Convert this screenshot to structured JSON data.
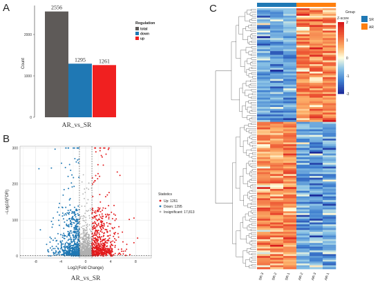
{
  "panels": {
    "a": "A",
    "b": "B",
    "c": "C"
  },
  "chart_data": [
    {
      "type": "bar",
      "categories": [
        "total",
        "down",
        "up"
      ],
      "values": [
        2556,
        1295,
        1261
      ],
      "value_labels": [
        "2556",
        "1295",
        "1261"
      ],
      "xlabel": "AR_vs_SR",
      "ylabel": "Count",
      "yticks": [
        "0",
        "1000",
        "2000"
      ],
      "ylim": [
        0,
        2700
      ],
      "legend_title": "Regulation",
      "legend": [
        {
          "name": "total",
          "color": "#5e5a58"
        },
        {
          "name": "down",
          "color": "#1f78b4"
        },
        {
          "name": "up",
          "color": "#f02020"
        }
      ],
      "legend_position": "right"
    },
    {
      "type": "scatter",
      "xlabel": "Log2(Fold Change)",
      "ylabel": "−Log10(FDR)",
      "caption": "AR_vs_SR",
      "xticks": [
        "-8",
        "-4",
        "0",
        "4",
        "8"
      ],
      "yticks": [
        "0",
        "100",
        "200",
        "300"
      ],
      "xlim": [
        -10.5,
        10.5
      ],
      "ylim": [
        -5,
        305
      ],
      "threshold_x": [
        -1,
        1
      ],
      "threshold_y": 1.3,
      "legend_title": "Statistics",
      "legend": [
        {
          "name": "Up: 1261",
          "color": "#e31a1c"
        },
        {
          "name": "Down: 1295",
          "color": "#1f78b4"
        },
        {
          "name": "Insignificant: 17,813",
          "color": "#b0b0b0"
        }
      ],
      "legend_position": "right",
      "counts": {
        "up": 1261,
        "down": 1295,
        "insignificant": 17813
      }
    },
    {
      "type": "heatmap",
      "columns": [
        "SR-3",
        "SR-2",
        "SR-1",
        "AR-2",
        "AR-3",
        "AR-1"
      ],
      "groups": [
        {
          "name": "SR",
          "color": "#1f78b4"
        },
        {
          "name": "AR",
          "color": "#ff7f0e"
        }
      ],
      "group_legend_title": "Group",
      "colorbar_title": "Z-score",
      "colorbar_ticks": [
        "2",
        "1",
        "0",
        "-1",
        "-2"
      ],
      "z_range": [
        -2,
        2
      ],
      "colors": {
        "low": "#1a2a9a",
        "mid": "#ffffe0",
        "high": "#d7191c"
      },
      "row_clusters": [
        {
          "pattern": "high in AR, low in SR",
          "fraction": 0.435
        },
        {
          "pattern": "high in SR, low in AR",
          "fraction": 0.565
        }
      ]
    }
  ]
}
